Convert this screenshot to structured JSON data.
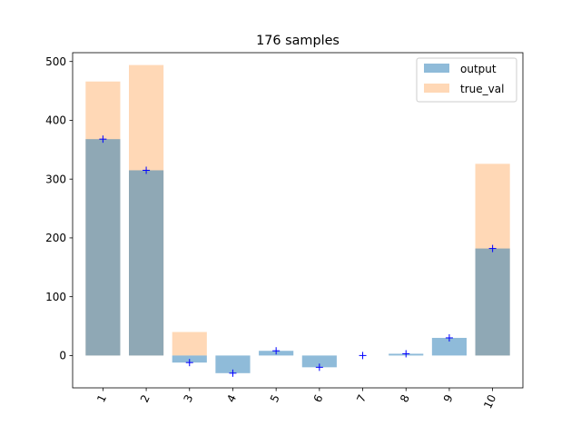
{
  "chart_data": {
    "type": "bar",
    "title": "176 samples",
    "xlabel": "",
    "ylabel": "",
    "categories": [
      "1",
      "2",
      "3",
      "4",
      "5",
      "6",
      "7",
      "8",
      "9",
      "10"
    ],
    "series": [
      {
        "name": "output",
        "color": "#1f77b4",
        "alpha": 0.5,
        "values": [
          368,
          315,
          -12,
          -30,
          8,
          -20,
          0,
          3,
          30,
          182
        ]
      },
      {
        "name": "true_val",
        "color": "#ff7f0e",
        "alpha": 0.3,
        "values": [
          466,
          494,
          40,
          0,
          0,
          0,
          0,
          0,
          0,
          326
        ]
      }
    ],
    "markers": {
      "symbol": "+",
      "color": "#0000ff",
      "series": "output"
    },
    "ylim": [
      -55,
      515
    ],
    "yticks": [
      0,
      100,
      200,
      300,
      400,
      500
    ],
    "xtick_rotation": -65,
    "legend": {
      "placement": "top-right"
    },
    "grid": false
  }
}
